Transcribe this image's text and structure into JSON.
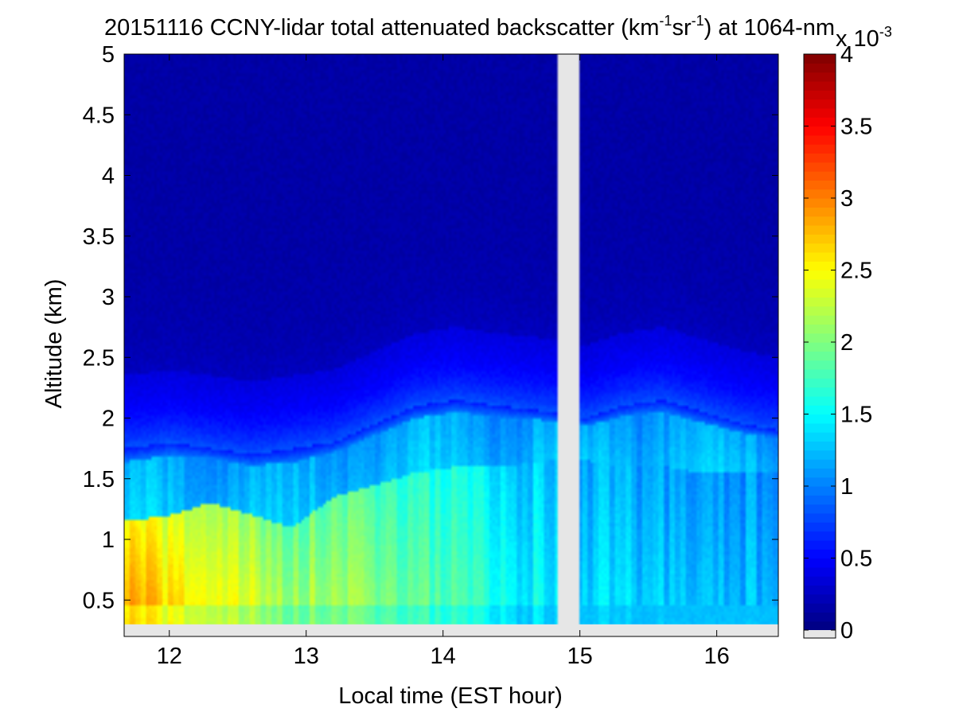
{
  "chart_data": {
    "type": "heatmap",
    "title_prefix": "20151116 CCNY-lidar total attenuated backscatter (km",
    "title_sup1": "-1",
    "title_mid": "sr",
    "title_sup2": "-1",
    "title_suffix": ") at 1064-nm",
    "xlabel": "Local time (EST hour)",
    "ylabel": "Altitude (km)",
    "xlim": [
      11.67,
      16.45
    ],
    "ylim": [
      0.2,
      5.0
    ],
    "x_ticks": [
      12,
      13,
      14,
      15,
      16
    ],
    "x_tick_labels": [
      "12",
      "13",
      "14",
      "15",
      "16"
    ],
    "y_ticks": [
      0.5,
      1,
      1.5,
      2,
      2.5,
      3,
      3.5,
      4,
      4.5,
      5
    ],
    "y_tick_labels": [
      "0.5",
      "1",
      "1.5",
      "2",
      "2.5",
      "3",
      "3.5",
      "4",
      "4.5",
      "5"
    ],
    "data_gap_hours": [
      14.83,
      15.0
    ],
    "data_altitude_min_km": 0.3,
    "colormap": "jet",
    "colorbar": {
      "min": 0,
      "max": 4,
      "ticks": [
        0,
        0.5,
        1,
        1.5,
        2,
        2.5,
        3,
        3.5,
        4
      ],
      "tick_labels": [
        "0",
        "0.5",
        "1",
        "1.5",
        "2",
        "2.5",
        "3",
        "3.5",
        "4"
      ],
      "multiplier_base": "x 10",
      "multiplier_exp": "-3",
      "missing_color": "#e6e6e6"
    },
    "time_hours": [
      11.7,
      12.0,
      12.3,
      12.6,
      12.9,
      13.2,
      13.5,
      13.8,
      14.1,
      14.4,
      14.8,
      15.05,
      15.3,
      15.6,
      15.9,
      16.2,
      16.45
    ],
    "boundary_layer_top_km": [
      1.75,
      1.8,
      1.75,
      1.7,
      1.75,
      1.8,
      1.95,
      2.1,
      2.15,
      2.1,
      2.05,
      2.0,
      2.1,
      2.15,
      2.05,
      1.95,
      1.9
    ],
    "mixed_layer_top_km": [
      1.15,
      1.2,
      1.3,
      1.2,
      1.1,
      1.35,
      1.45,
      1.55,
      1.6,
      1.6,
      1.65,
      1.65,
      1.6,
      1.6,
      1.55,
      1.55,
      1.55
    ],
    "near_surface_peak": [
      3.1,
      2.8,
      2.7,
      2.5,
      2.3,
      2.3,
      2.15,
      2.0,
      1.9,
      1.7,
      1.5,
      1.45,
      1.4,
      1.35,
      1.35,
      1.3,
      1.3
    ],
    "background_level": 0.15
  }
}
